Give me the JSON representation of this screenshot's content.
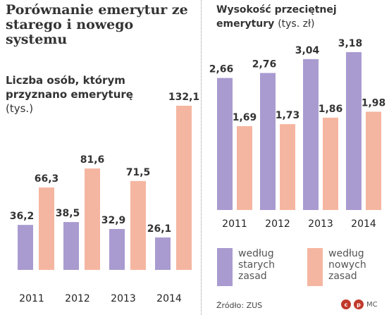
{
  "title": "Porównanie emerytur ze starego i nowego systemu",
  "left_subtitle": "Liczba osób, którym przyznano emeryturę",
  "left_unit": "(tys.)",
  "right_subtitle": "Wysokość przeciętnej emerytury",
  "right_unit": "(tys. zł)",
  "legend": {
    "old": "według starych zasad",
    "new": "według nowych zasad"
  },
  "source": "Źródło: ZUS",
  "logo": {
    "circles": [
      "c",
      "p"
    ],
    "text": "MC"
  },
  "colors": {
    "purple": "#a99bd0",
    "salmon": "#f5b6a1",
    "text": "#333333"
  },
  "chart_data": [
    {
      "type": "bar",
      "title": "Liczba osób, którym przyznano emeryturę",
      "unit": "tys.",
      "categories": [
        "2011",
        "2012",
        "2013",
        "2014"
      ],
      "series": [
        {
          "name": "według starych zasad",
          "values": [
            36.2,
            38.5,
            32.9,
            26.1
          ],
          "labels": [
            "36,2",
            "38,5",
            "32,9",
            "26,1"
          ]
        },
        {
          "name": "według nowych zasad",
          "values": [
            66.3,
            81.6,
            71.5,
            132.1
          ],
          "labels": [
            "66,3",
            "81,6",
            "71,5",
            "132,1"
          ]
        }
      ],
      "ylim": [
        0,
        140
      ]
    },
    {
      "type": "bar",
      "title": "Wysokość przeciętnej emerytury",
      "unit": "tys. zł",
      "categories": [
        "2011",
        "2012",
        "2013",
        "2014"
      ],
      "series": [
        {
          "name": "według starych zasad",
          "values": [
            2.66,
            2.76,
            3.04,
            3.18
          ],
          "labels": [
            "2,66",
            "2,76",
            "3,04",
            "3,18"
          ]
        },
        {
          "name": "według nowych zasad",
          "values": [
            1.69,
            1.73,
            1.86,
            1.98
          ],
          "labels": [
            "1,69",
            "1,73",
            "1,86",
            "1,98"
          ]
        }
      ],
      "ylim": [
        0,
        3.2
      ]
    }
  ]
}
